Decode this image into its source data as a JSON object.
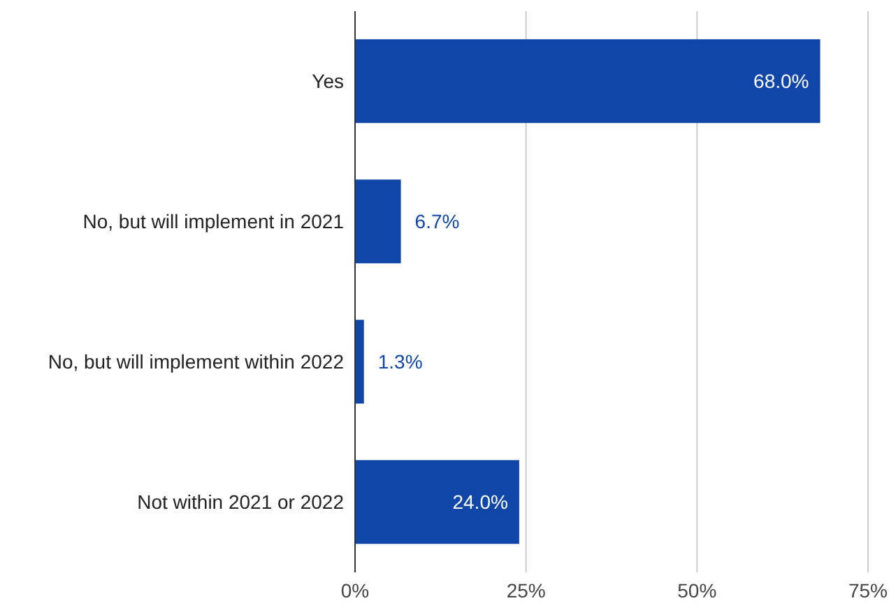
{
  "chart_data": {
    "type": "bar",
    "orientation": "horizontal",
    "categories": [
      "Yes",
      "No, but will implement in 2021",
      "No, but will implement within 2022",
      "Not within 2021 or 2022"
    ],
    "values": [
      68.0,
      6.7,
      1.3,
      24.0
    ],
    "value_labels": [
      "68.0%",
      "6.7%",
      "1.3%",
      "24.0%"
    ],
    "color": "#0f46a8",
    "xlim": [
      0,
      75
    ],
    "xticks": [
      {
        "value": 0,
        "label": "0%"
      },
      {
        "value": 25,
        "label": "25%"
      },
      {
        "value": 50,
        "label": "50%"
      },
      {
        "value": 75,
        "label": "75%"
      }
    ],
    "grid": "x"
  }
}
